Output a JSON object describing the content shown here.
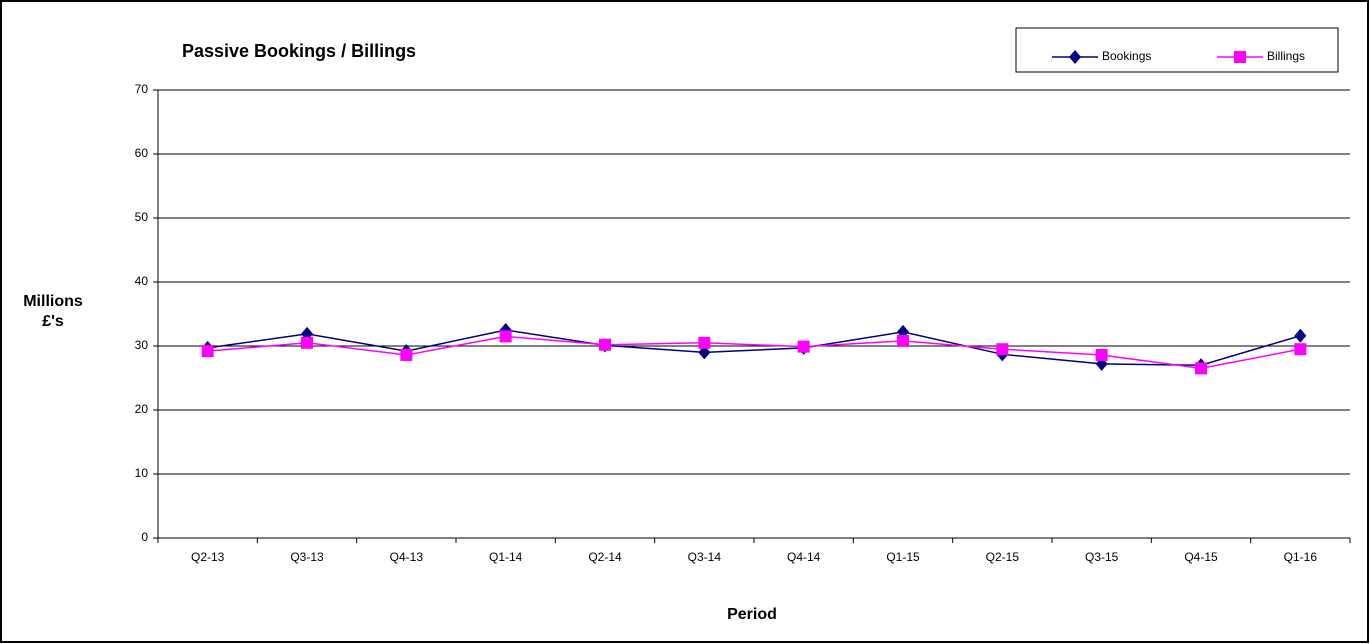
{
  "chart_data": {
    "type": "line",
    "title": "Passive Bookings / Billings",
    "x_label": "Period",
    "y_label": "Millions £'s",
    "categories": [
      "Q2-13",
      "Q3-13",
      "Q4-13",
      "Q1-14",
      "Q2-14",
      "Q3-14",
      "Q4-14",
      "Q1-15",
      "Q2-15",
      "Q3-15",
      "Q4-15",
      "Q1-16"
    ],
    "series": [
      {
        "name": "Bookings",
        "color": "#000080",
        "marker": "diamond",
        "values": [
          29.7,
          31.9,
          29.2,
          32.5,
          30.1,
          29.0,
          29.7,
          32.2,
          28.7,
          27.2,
          27.0,
          31.6
        ]
      },
      {
        "name": "Billings",
        "color": "#ff00ff",
        "marker": "square",
        "values": [
          29.2,
          30.5,
          28.6,
          31.5,
          30.2,
          30.5,
          29.9,
          30.8,
          29.5,
          28.6,
          26.5,
          29.5
        ]
      }
    ],
    "ylim": [
      0,
      70
    ],
    "yticks": [
      0,
      10,
      20,
      30,
      40,
      50,
      60,
      70
    ],
    "grid": true,
    "legend": "top-right"
  }
}
